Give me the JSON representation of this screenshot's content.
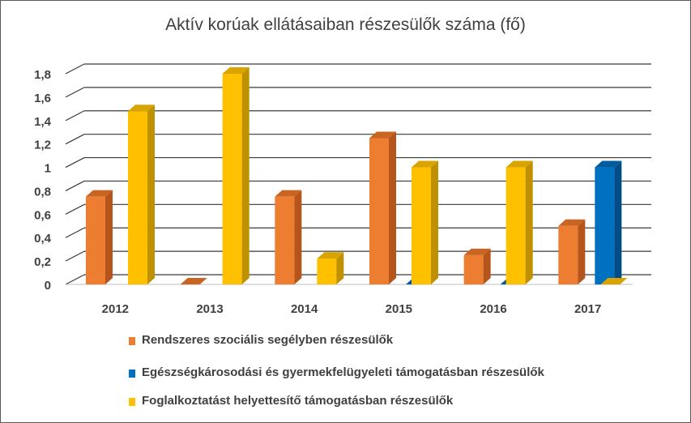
{
  "chart_data": {
    "type": "bar",
    "title": "Aktív korúak ellátásaiban részesülők száma (fő)",
    "categories": [
      "2012",
      "2013",
      "2014",
      "2015",
      "2016",
      "2017"
    ],
    "yticks": [
      "0",
      "0,2",
      "0,4",
      "0,6",
      "0,8",
      "1",
      "1,2",
      "1,4",
      "1,6",
      "1,8"
    ],
    "ylim": [
      0,
      1.8
    ],
    "grid": true,
    "three_d": true,
    "legend_position": "bottom",
    "series": [
      {
        "name": "Rendszeres szociális segélyben részesülők",
        "values": [
          0.75,
          0,
          0.75,
          1.25,
          0.25,
          0.5
        ],
        "color": "#ED7D31",
        "side_color": "#B5541B",
        "top_color": "#C96422"
      },
      {
        "name": "Egészségkárosodási és gyermekfelügyeleti támogatásban részesülők",
        "values": [
          null,
          null,
          null,
          0,
          0,
          1
        ],
        "color": "#0070C0",
        "side_color": "#004E88",
        "top_color": "#005C9F"
      },
      {
        "name": "Foglalkoztatást helyettesítő támogatásban részesülők",
        "values": [
          1.48,
          1.8,
          0.22,
          1,
          1,
          0
        ],
        "color": "#FFC000",
        "side_color": "#BF9000",
        "top_color": "#D9A300"
      }
    ]
  }
}
